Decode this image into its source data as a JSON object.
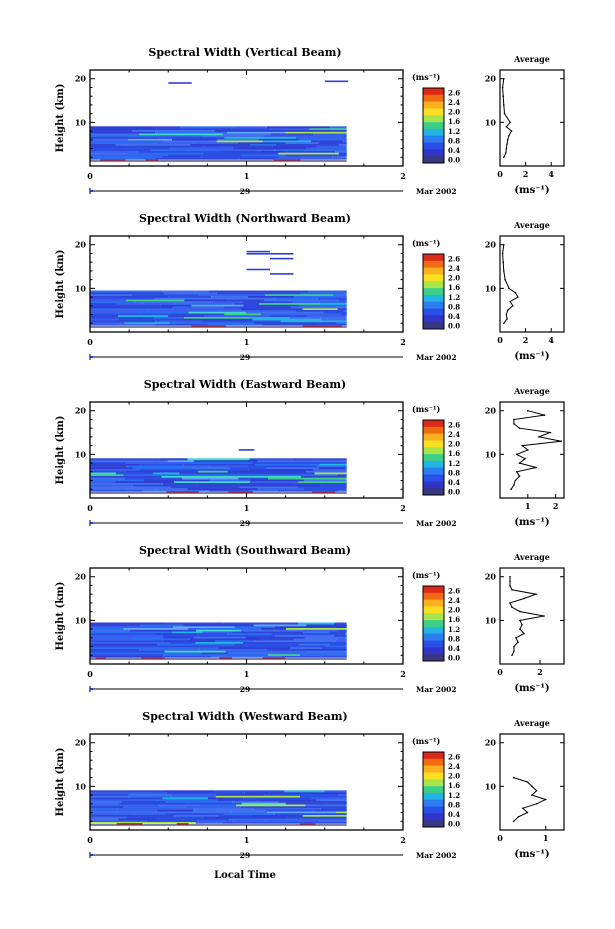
{
  "chart_data": {
    "type": "heatmap",
    "xlabel": "Local Time",
    "date_label": "Mar 2002",
    "colorbar": {
      "unit": "(ms⁻¹)",
      "ticks": [
        "2.6",
        "2.4",
        "2.0",
        "1.6",
        "1.2",
        "0.8",
        "0.4",
        "0.0"
      ],
      "colors": [
        "#dc2a1a",
        "#f06a12",
        "#fcb020",
        "#f8e020",
        "#a8e44a",
        "#3ecf86",
        "#22b4e2",
        "#2a7ef0",
        "#2a50e8",
        "#3034c8",
        "#383880"
      ]
    },
    "average_title": "Average",
    "average_unit": "(ms⁻¹)",
    "panels": [
      {
        "title": "Spectral Width (Vertical Beam)",
        "ylabel": "Height (km)",
        "x_ticks": [
          "0",
          "1",
          "2"
        ],
        "y_ticks": [
          "20",
          "10"
        ],
        "day": "29",
        "avg_x_ticks": [
          "0",
          "2",
          "4"
        ],
        "avg_xlim": [
          0,
          5
        ],
        "data_end_hours": 1.64,
        "heights_km": [
          2,
          3,
          4,
          5,
          6,
          7,
          8,
          9,
          10,
          12,
          14,
          16,
          18,
          20
        ],
        "avg_values": [
          0.3,
          0.45,
          0.5,
          0.55,
          0.6,
          0.7,
          0.9,
          0.5,
          0.8,
          0.35,
          0.3,
          0.25,
          0.2,
          0.3
        ]
      },
      {
        "title": "Spectral Width (Northward Beam)",
        "ylabel": "Height (km)",
        "x_ticks": [
          "0",
          "1",
          "2"
        ],
        "y_ticks": [
          "20",
          "10"
        ],
        "day": "29",
        "avg_x_ticks": [
          "0",
          "2",
          "4"
        ],
        "avg_xlim": [
          0,
          5
        ],
        "data_end_hours": 1.64,
        "heights_km": [
          2,
          3,
          4,
          5,
          6,
          7,
          8,
          9,
          10,
          12,
          14,
          16,
          18,
          20
        ],
        "avg_values": [
          0.3,
          0.55,
          0.5,
          0.6,
          1.0,
          0.8,
          1.4,
          1.2,
          0.7,
          0.4,
          0.3,
          0.25,
          0.2,
          0.3
        ]
      },
      {
        "title": "Spectral Width (Eastward Beam)",
        "ylabel": "Height (km)",
        "x_ticks": [
          "0",
          "1",
          "2"
        ],
        "y_ticks": [
          "20",
          "10"
        ],
        "day": "29",
        "avg_x_ticks": [
          "1",
          "2"
        ],
        "avg_xlim": [
          0,
          2.3
        ],
        "data_end_hours": 1.64,
        "heights_km": [
          2,
          3,
          4,
          5,
          6,
          7,
          8,
          9,
          10,
          11,
          12,
          13,
          14,
          15,
          16,
          17,
          18,
          19,
          20
        ],
        "avg_values": [
          0.4,
          0.5,
          0.55,
          0.7,
          0.6,
          1.3,
          0.7,
          0.9,
          0.6,
          1.0,
          0.8,
          2.2,
          1.4,
          1.8,
          0.7,
          0.5,
          0.5,
          1.6,
          1.0
        ]
      },
      {
        "title": "Spectral Width (Southward Beam)",
        "ylabel": "Height (km)",
        "x_ticks": [
          "0",
          "1",
          "2"
        ],
        "y_ticks": [
          "20",
          "10"
        ],
        "day": "29",
        "avg_x_ticks": [
          "0",
          "2"
        ],
        "avg_xlim": [
          0,
          3.2
        ],
        "data_end_hours": 1.64,
        "heights_km": [
          2,
          3,
          4,
          5,
          6,
          7,
          8,
          9,
          10,
          11,
          12,
          13,
          14,
          15,
          16,
          17,
          18,
          19,
          20
        ],
        "avg_values": [
          0.6,
          0.7,
          0.7,
          0.9,
          0.8,
          1.2,
          1.0,
          1.1,
          1.0,
          2.2,
          1.0,
          0.6,
          0.5,
          1.2,
          1.8,
          0.6,
          0.5,
          0.5,
          0.5
        ]
      },
      {
        "title": "Spectral Width (Westward Beam)",
        "ylabel": "Height (km)",
        "x_ticks": [
          "0",
          "1",
          "2"
        ],
        "y_ticks": [
          "20",
          "10"
        ],
        "day": "29",
        "avg_x_ticks": [
          "0",
          "1"
        ],
        "avg_xlim": [
          0,
          1.4
        ],
        "data_end_hours": 1.64,
        "heights_km": [
          2,
          3,
          4,
          5,
          6,
          7,
          8,
          9,
          10,
          11,
          12
        ],
        "avg_values": [
          0.3,
          0.4,
          0.6,
          0.5,
          0.8,
          1.0,
          0.7,
          0.8,
          0.7,
          0.6,
          0.3
        ]
      }
    ]
  }
}
